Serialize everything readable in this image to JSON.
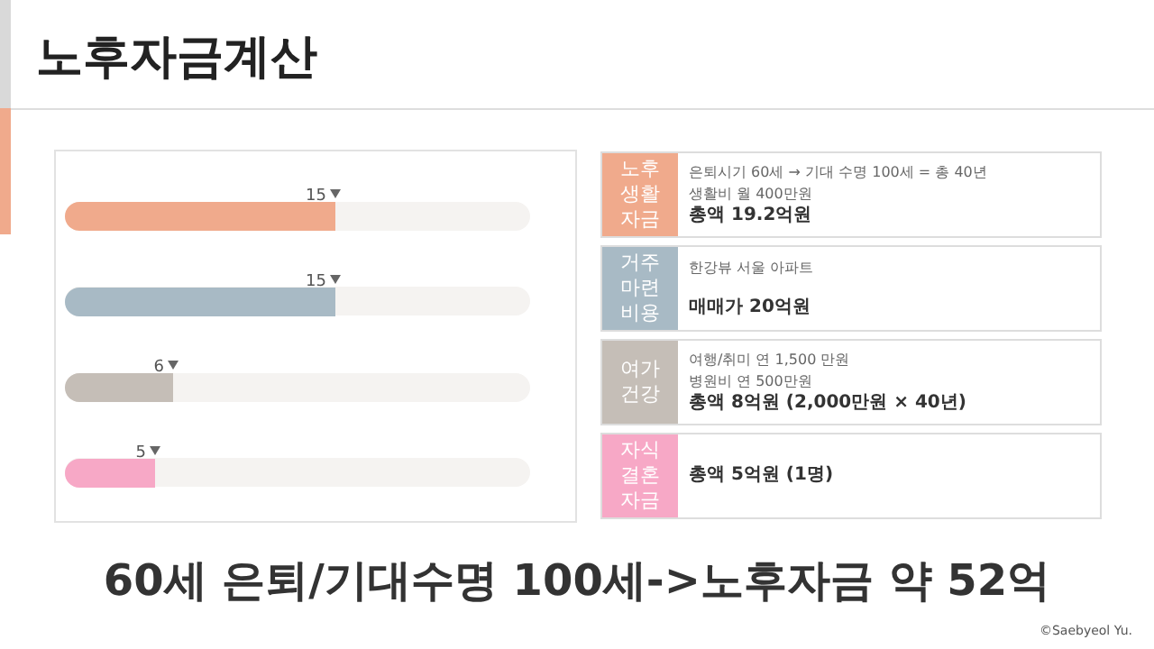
{
  "chart_data": {
    "type": "bar",
    "orientation": "horizontal",
    "title": "노후자금계산",
    "categories": [
      "노후 생활 자금",
      "거주 마련 비용",
      "여가 건강",
      "자식 결혼 자금"
    ],
    "values": [
      15,
      15,
      6,
      5
    ],
    "colors": [
      "#f0aa8c",
      "#a8bac5",
      "#c5beb7",
      "#f7a8c6"
    ],
    "data_labels": true,
    "annotations": [
      "은퇴시기 60세 → 기대 수명 100세 = 총 40년\n생활비 월 400만원\n총액 19.2억원",
      "한강뷰 서울 아파트\n\n매매가 20억원",
      "여행/취미 연 1,500 만원\n병원비 연 500만원\n총액 8억원 (2,000만원 × 40년)",
      "총액 5억원 (1명)",
      "60세 은퇴/기대수명 100세->노후자금 약 52억",
      "©Saebyeol Yu."
    ]
  }
}
